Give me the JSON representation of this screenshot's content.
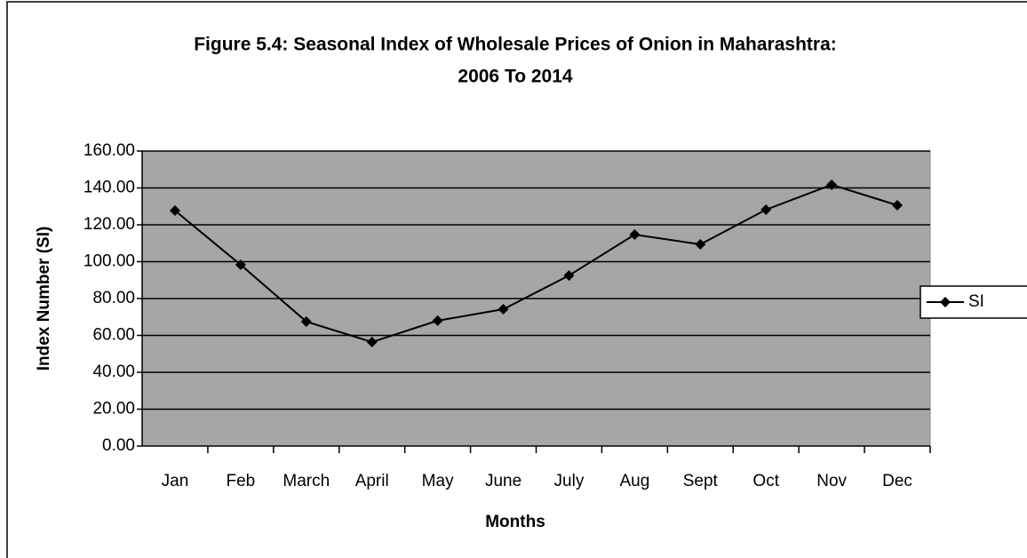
{
  "chart_data": {
    "type": "line",
    "title": [
      "Figure 5.4: Seasonal Index of Wholesale Prices of Onion in Maharashtra:",
      "2006 To 2014"
    ],
    "x_label": "Months",
    "y_label": "Index Number (SI)",
    "categories": [
      "Jan",
      "Feb",
      "March",
      "April",
      "May",
      "June",
      "July",
      "Aug",
      "Sept",
      "Oct",
      "Nov",
      "Dec"
    ],
    "series": [
      {
        "name": "SI",
        "color": "#000000",
        "values": [
          127.7,
          98.3,
          67.5,
          56.4,
          68,
          74.2,
          92.5,
          114.7,
          109.4,
          128.2,
          141.7,
          130.6
        ]
      }
    ],
    "ylim": [
      0,
      160
    ],
    "yticks": [
      {
        "value": 0,
        "label": "0.00"
      },
      {
        "value": 20,
        "label": "20.00"
      },
      {
        "value": 40,
        "label": "40.00"
      },
      {
        "value": 60,
        "label": "60.00"
      },
      {
        "value": 80,
        "label": "80.00"
      },
      {
        "value": 100,
        "label": "100.00"
      },
      {
        "value": 120,
        "label": "120.00"
      },
      {
        "value": 140,
        "label": "140.00"
      },
      {
        "value": 160,
        "label": "160.00"
      }
    ],
    "grid": true,
    "legend": "right",
    "plot_background": "#a6a6a6"
  }
}
